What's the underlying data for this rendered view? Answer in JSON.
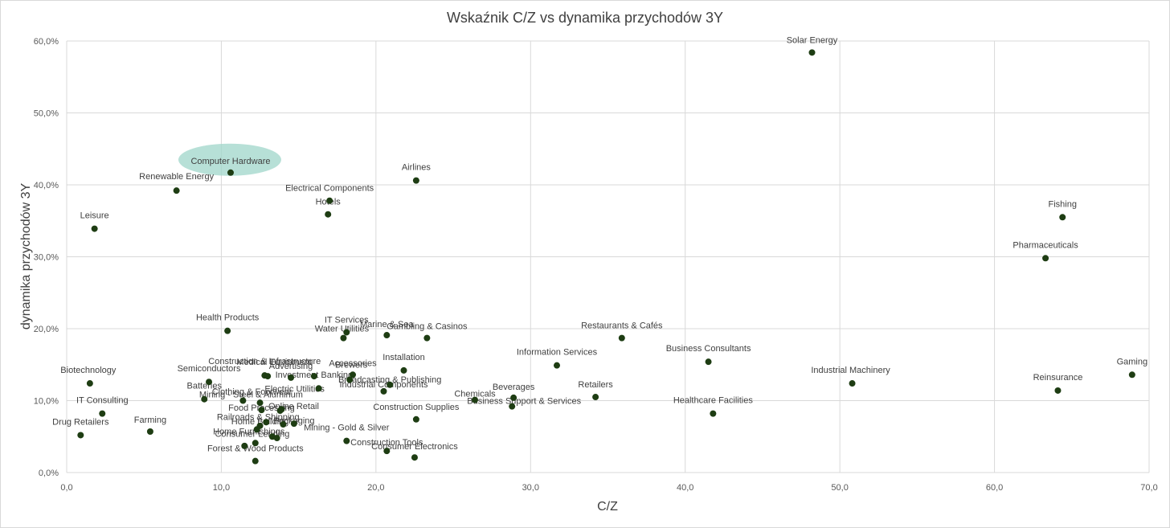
{
  "chart_data": {
    "type": "scatter",
    "title": "Wskaźnik C/Z vs dynamika przychodów 3Y",
    "xlabel": "C/Z",
    "ylabel": "dynamika przychodów 3Y",
    "xlim": [
      0,
      70
    ],
    "ylim": [
      0,
      60
    ],
    "x_ticks": [
      "0,0",
      "10,0",
      "20,0",
      "30,0",
      "40,0",
      "50,0",
      "60,0",
      "70,0"
    ],
    "y_ticks": [
      "0,0%",
      "10,0%",
      "20,0%",
      "30,0%",
      "40,0%",
      "50,0%",
      "60,0%"
    ],
    "grid": true,
    "marker_color": "#1e3d13",
    "highlight_color": "#9fd6c9",
    "highlighted": "Computer Hardware",
    "points": [
      {
        "label": "Solar Energy",
        "x": 48.2,
        "y": 58.4
      },
      {
        "label": "Computer Hardware",
        "x": 10.6,
        "y": 41.7
      },
      {
        "label": "Renewable Energy",
        "x": 7.1,
        "y": 39.2
      },
      {
        "label": "Airlines",
        "x": 22.6,
        "y": 40.6
      },
      {
        "label": "Electrical Components",
        "x": 17.0,
        "y": 37.8
      },
      {
        "label": "Hotels",
        "x": 16.9,
        "y": 35.9
      },
      {
        "label": "Leisure",
        "x": 1.8,
        "y": 33.9
      },
      {
        "label": "Fishing",
        "x": 64.4,
        "y": 35.5
      },
      {
        "label": "Pharmaceuticals",
        "x": 63.3,
        "y": 29.8
      },
      {
        "label": "Health Products",
        "x": 10.4,
        "y": 19.7
      },
      {
        "label": "IT Services",
        "x": 18.1,
        "y": 19.5
      },
      {
        "label": "Water Utilities",
        "x": 17.9,
        "y": 18.7
      },
      {
        "label": "Marine & Sea",
        "x": 20.7,
        "y": 19.1
      },
      {
        "label": "Gambling & Casinos",
        "x": 23.3,
        "y": 18.7
      },
      {
        "label": "Restaurants & Cafés",
        "x": 35.9,
        "y": 18.7
      },
      {
        "label": "Information Services",
        "x": 31.7,
        "y": 14.9
      },
      {
        "label": "Business Consultants",
        "x": 41.5,
        "y": 15.4
      },
      {
        "label": "Gaming",
        "x": 68.9,
        "y": 13.6
      },
      {
        "label": "Industrial Machinery",
        "x": 50.8,
        "y": 12.4
      },
      {
        "label": "Reinsurance",
        "x": 64.1,
        "y": 11.4
      },
      {
        "label": "Biotechnology",
        "x": 1.5,
        "y": 12.4
      },
      {
        "label": "Semiconductors",
        "x": 9.2,
        "y": 12.6
      },
      {
        "label": "Construction & Infrastructure",
        "x": 12.8,
        "y": 13.5
      },
      {
        "label": "Medical Equipment",
        "x": 13.0,
        "y": 13.4
      },
      {
        "label": "Advertising",
        "x": 14.5,
        "y": 13.2
      },
      {
        "label": "Investment Banking",
        "x": 16.0,
        "y": 13.4
      },
      {
        "label": "Accessories",
        "x": 18.5,
        "y": 13.6
      },
      {
        "label": "Brewers",
        "x": 18.3,
        "y": 12.9
      },
      {
        "label": "Installation",
        "x": 21.8,
        "y": 14.2
      },
      {
        "label": "Broadcasting & Publishing",
        "x": 20.9,
        "y": 12.2
      },
      {
        "label": "Industrial Components",
        "x": 20.5,
        "y": 11.3
      },
      {
        "label": "Batteries",
        "x": 8.9,
        "y": 10.2
      },
      {
        "label": "Clothing & Footwear",
        "x": 12.5,
        "y": 9.7
      },
      {
        "label": "Electric Utilities",
        "x": 16.3,
        "y": 11.7
      },
      {
        "label": "Mining - Steel & Aluminum",
        "x": 11.4,
        "y": 10.0
      },
      {
        "label": "Food Processing",
        "x": 12.6,
        "y": 8.7
      },
      {
        "label": "Chemicals",
        "x": 26.4,
        "y": 10.1
      },
      {
        "label": "Beverages",
        "x": 28.9,
        "y": 10.4
      },
      {
        "label": "Business Support & Services",
        "x": 28.8,
        "y": 9.2
      },
      {
        "label": "Retailers",
        "x": 34.2,
        "y": 10.5
      },
      {
        "label": "Healthcare Facilities",
        "x": 41.8,
        "y": 8.2
      },
      {
        "label": "Construction Supplies",
        "x": 22.6,
        "y": 7.4
      },
      {
        "label": "IT Consulting",
        "x": 2.3,
        "y": 8.2
      },
      {
        "label": "Online Retail",
        "x": 13.9,
        "y": 8.8
      },
      {
        "label": "Railroads & Shipping",
        "x": 12.9,
        "y": 7.0
      },
      {
        "label": "Home Building",
        "x": 12.5,
        "y": 6.5
      },
      {
        "label": "Packaging",
        "x": 14.7,
        "y": 6.8
      },
      {
        "label": "Consumer Lending",
        "x": 13.3,
        "y": 5.0
      },
      {
        "label": "Farming",
        "x": 5.4,
        "y": 5.7
      },
      {
        "label": "Drug Retailers",
        "x": 0.9,
        "y": 5.2
      },
      {
        "label": "Home Furnishings",
        "x": 12.2,
        "y": 4.1
      },
      {
        "label": "Mining - Gold & Silver",
        "x": 18.1,
        "y": 4.4
      },
      {
        "label": "Construction Tools",
        "x": 20.7,
        "y": 3.0
      },
      {
        "label": "Consumer Electronics",
        "x": 22.5,
        "y": 2.1
      },
      {
        "label": "Forest & Wood Products",
        "x": 12.2,
        "y": 1.6
      },
      {
        "label": "Unlabeled point A",
        "x": 11.5,
        "y": 3.7
      },
      {
        "label": "Unlabeled point B",
        "x": 12.3,
        "y": 6.0
      },
      {
        "label": "Unlabeled point C",
        "x": 13.6,
        "y": 4.8
      },
      {
        "label": "Unlabeled point D",
        "x": 14.0,
        "y": 6.7
      },
      {
        "label": "Unlabeled point E",
        "x": 13.8,
        "y": 8.6
      }
    ]
  }
}
